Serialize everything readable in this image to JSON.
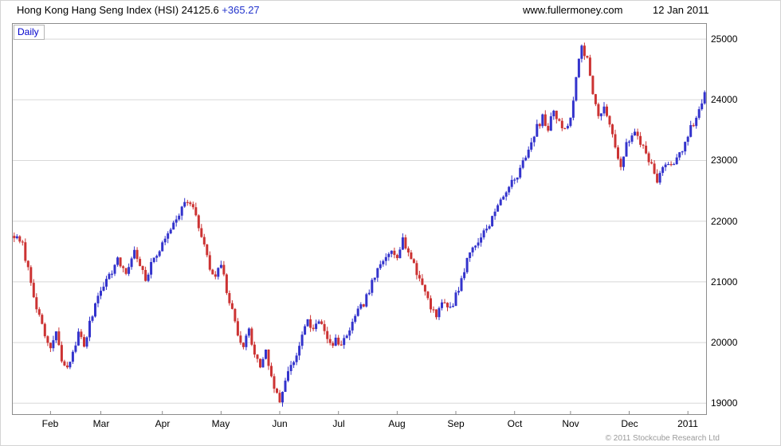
{
  "header": {
    "title": "Hong Kong Hang Seng Index (HSI) 24125.6",
    "change": "+365.27",
    "site": "www.fullermoney.com",
    "date": "12 Jan 2011"
  },
  "chart": {
    "mode_label": "Daily",
    "footer": "© 2011 Stockcube Research Ltd"
  },
  "chart_data": {
    "type": "candlestick",
    "title": "Hong Kong Hang Seng Index (HSI)",
    "timeframe": "Daily",
    "last_close": 24125.6,
    "change": 365.27,
    "date": "12 Jan 2011",
    "y_ticks": [
      19000,
      20000,
      21000,
      22000,
      23000,
      24000,
      25000
    ],
    "ylim": [
      18820,
      25250
    ],
    "x_labels": [
      "Feb",
      "Mar",
      "Apr",
      "May",
      "Jun",
      "Jul",
      "Aug",
      "Sep",
      "Oct",
      "Nov",
      "Dec",
      "2011"
    ],
    "month_start_days": [
      13,
      31,
      53,
      74,
      95,
      116,
      137,
      158,
      179,
      199,
      220,
      241
    ],
    "trading_days": 248,
    "up_color": "#3333cc",
    "down_color": "#cc3333",
    "grid_color": "#d8d8d8",
    "axis_color": "#8c8c8c",
    "legend_position": "none",
    "grid": "horizontal-only",
    "close_waypoints": [
      [
        0,
        21750
      ],
      [
        3,
        21600
      ],
      [
        6,
        21000
      ],
      [
        9,
        20400
      ],
      [
        11,
        20100
      ],
      [
        13,
        19900
      ],
      [
        15,
        20150
      ],
      [
        17,
        19700
      ],
      [
        19,
        19550
      ],
      [
        21,
        19850
      ],
      [
        23,
        20150
      ],
      [
        25,
        19950
      ],
      [
        27,
        20300
      ],
      [
        29,
        20650
      ],
      [
        31,
        20900
      ],
      [
        34,
        21100
      ],
      [
        37,
        21350
      ],
      [
        40,
        21150
      ],
      [
        43,
        21500
      ],
      [
        45,
        21300
      ],
      [
        47,
        21000
      ],
      [
        50,
        21400
      ],
      [
        53,
        21600
      ],
      [
        56,
        21900
      ],
      [
        59,
        22150
      ],
      [
        62,
        22350
      ],
      [
        64,
        22200
      ],
      [
        66,
        21900
      ],
      [
        68,
        21600
      ],
      [
        70,
        21200
      ],
      [
        72,
        21050
      ],
      [
        74,
        21300
      ],
      [
        76,
        20850
      ],
      [
        78,
        20500
      ],
      [
        80,
        20150
      ],
      [
        82,
        19950
      ],
      [
        84,
        20200
      ],
      [
        86,
        19800
      ],
      [
        88,
        19600
      ],
      [
        90,
        19900
      ],
      [
        92,
        19400
      ],
      [
        94,
        19150
      ],
      [
        95,
        18990
      ],
      [
        97,
        19400
      ],
      [
        99,
        19650
      ],
      [
        101,
        19800
      ],
      [
        103,
        20100
      ],
      [
        105,
        20350
      ],
      [
        107,
        20200
      ],
      [
        109,
        20400
      ],
      [
        111,
        20150
      ],
      [
        113,
        19950
      ],
      [
        115,
        20050
      ],
      [
        117,
        19900
      ],
      [
        119,
        20150
      ],
      [
        121,
        20300
      ],
      [
        123,
        20500
      ],
      [
        125,
        20650
      ],
      [
        127,
        20850
      ],
      [
        129,
        21100
      ],
      [
        131,
        21250
      ],
      [
        133,
        21400
      ],
      [
        135,
        21550
      ],
      [
        137,
        21450
      ],
      [
        139,
        21700
      ],
      [
        141,
        21500
      ],
      [
        143,
        21250
      ],
      [
        145,
        21050
      ],
      [
        147,
        20850
      ],
      [
        149,
        20600
      ],
      [
        151,
        20450
      ],
      [
        153,
        20700
      ],
      [
        155,
        20550
      ],
      [
        157,
        20650
      ],
      [
        159,
        20900
      ],
      [
        161,
        21200
      ],
      [
        163,
        21500
      ],
      [
        165,
        21600
      ],
      [
        167,
        21750
      ],
      [
        169,
        21900
      ],
      [
        171,
        22050
      ],
      [
        173,
        22250
      ],
      [
        175,
        22400
      ],
      [
        177,
        22600
      ],
      [
        179,
        22650
      ],
      [
        181,
        22900
      ],
      [
        183,
        23100
      ],
      [
        185,
        23250
      ],
      [
        187,
        23550
      ],
      [
        189,
        23700
      ],
      [
        191,
        23500
      ],
      [
        193,
        23850
      ],
      [
        195,
        23600
      ],
      [
        197,
        23550
      ],
      [
        199,
        23700
      ],
      [
        201,
        24350
      ],
      [
        203,
        24900
      ],
      [
        205,
        24650
      ],
      [
        207,
        24150
      ],
      [
        209,
        23700
      ],
      [
        211,
        23900
      ],
      [
        213,
        23550
      ],
      [
        215,
        23200
      ],
      [
        217,
        22950
      ],
      [
        219,
        23250
      ],
      [
        220,
        23300
      ],
      [
        222,
        23450
      ],
      [
        224,
        23300
      ],
      [
        226,
        23150
      ],
      [
        228,
        22900
      ],
      [
        230,
        22650
      ],
      [
        232,
        22850
      ],
      [
        234,
        23000
      ],
      [
        236,
        22900
      ],
      [
        238,
        23100
      ],
      [
        240,
        23250
      ],
      [
        241,
        23450
      ],
      [
        243,
        23600
      ],
      [
        245,
        23800
      ],
      [
        246,
        23950
      ],
      [
        247,
        24125.6
      ]
    ],
    "noise": {
      "seed": 7,
      "close": 120,
      "wick": 75
    }
  }
}
